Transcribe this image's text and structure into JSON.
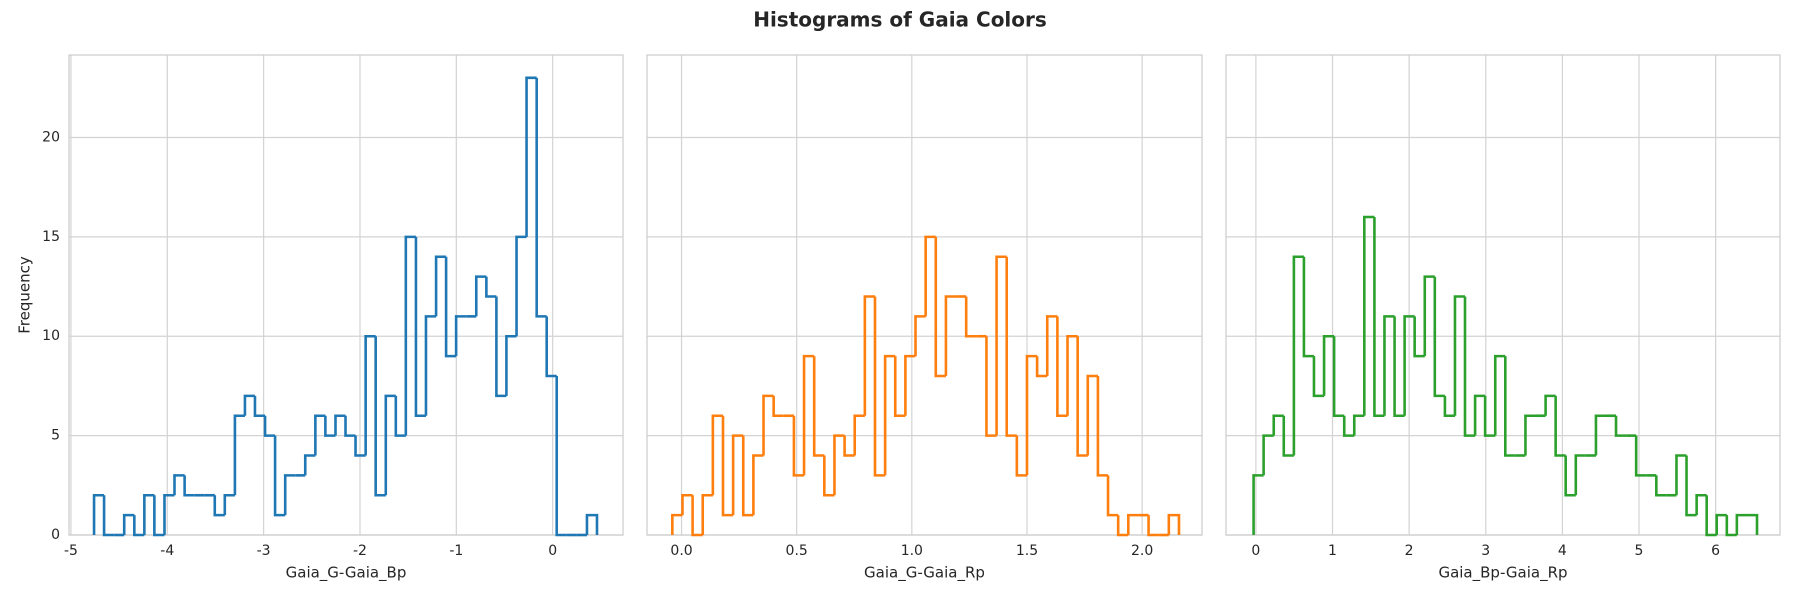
{
  "title": "Histograms of Gaia Colors",
  "chart_data": [
    {
      "type": "histogram",
      "xlabel": "Gaia_G-Gaia_Bp",
      "ylabel": "Frequency",
      "color": "#1f77b4",
      "grid": true,
      "xlim": [
        -5.02,
        0.73
      ],
      "xticks": [
        -5,
        -4,
        -3,
        -2,
        -1,
        0
      ],
      "ylim": [
        0,
        24.15
      ],
      "yticks": [
        0,
        5,
        10,
        15,
        20
      ],
      "bins": [
        -4.76,
        -4.656,
        -4.551,
        -4.447,
        -4.342,
        -4.238,
        -4.134,
        -4.029,
        -3.925,
        -3.82,
        -3.716,
        -3.612,
        -3.507,
        -3.403,
        -3.298,
        -3.194,
        -3.09,
        -2.985,
        -2.881,
        -2.776,
        -2.672,
        -2.568,
        -2.463,
        -2.359,
        -2.254,
        -2.15,
        -2.046,
        -1.941,
        -1.837,
        -1.732,
        -1.628,
        -1.524,
        -1.419,
        -1.315,
        -1.21,
        -1.106,
        -1.002,
        -0.897,
        -0.793,
        -0.688,
        -0.584,
        -0.48,
        -0.375,
        -0.271,
        -0.166,
        -0.062,
        0.042,
        0.147,
        0.251,
        0.356,
        0.46
      ],
      "values": [
        2,
        0,
        0,
        1,
        0,
        2,
        0,
        2,
        3,
        2,
        2,
        2,
        1,
        2,
        6,
        7,
        6,
        5,
        1,
        3,
        3,
        4,
        6,
        5,
        6,
        5,
        4,
        10,
        2,
        7,
        5,
        15,
        6,
        11,
        14,
        9,
        11,
        11,
        13,
        12,
        7,
        10,
        15,
        23,
        11,
        8,
        0,
        0,
        0,
        1
      ]
    },
    {
      "type": "histogram",
      "xlabel": "Gaia_G-Gaia_Rp",
      "color": "#ff7f0e",
      "grid": true,
      "sharey": true,
      "xlim": [
        -0.15,
        2.26
      ],
      "xticks": [
        {
          "value": 0,
          "label": "0.0"
        },
        0.5,
        {
          "value": 1,
          "label": "1.0"
        },
        1.5,
        {
          "value": 2,
          "label": "2.0"
        }
      ],
      "bins": [
        -0.04,
        0.004,
        0.048,
        0.092,
        0.136,
        0.18,
        0.224,
        0.268,
        0.312,
        0.356,
        0.4,
        0.444,
        0.488,
        0.532,
        0.576,
        0.62,
        0.664,
        0.708,
        0.752,
        0.796,
        0.84,
        0.884,
        0.928,
        0.972,
        1.016,
        1.06,
        1.104,
        1.148,
        1.192,
        1.236,
        1.28,
        1.324,
        1.368,
        1.412,
        1.456,
        1.5,
        1.544,
        1.588,
        1.632,
        1.676,
        1.72,
        1.764,
        1.808,
        1.852,
        1.896,
        1.94,
        1.984,
        2.028,
        2.072,
        2.116,
        2.16
      ],
      "values": [
        1,
        2,
        0,
        2,
        6,
        1,
        5,
        1,
        4,
        7,
        6,
        6,
        3,
        9,
        4,
        2,
        5,
        4,
        6,
        12,
        3,
        9,
        6,
        9,
        11,
        15,
        8,
        12,
        12,
        10,
        10,
        5,
        14,
        5,
        3,
        9,
        8,
        11,
        6,
        10,
        4,
        8,
        3,
        1,
        0,
        1,
        1,
        0,
        0,
        1
      ]
    },
    {
      "type": "histogram",
      "xlabel": "Gaia_Bp-Gaia_Rp",
      "color": "#2ca02c",
      "grid": true,
      "sharey": true,
      "xlim": [
        -0.39,
        6.84
      ],
      "xticks": [
        0,
        1,
        2,
        3,
        4,
        5,
        6
      ],
      "bins": [
        -0.03,
        0.101,
        0.233,
        0.364,
        0.496,
        0.627,
        0.758,
        0.89,
        1.021,
        1.153,
        1.284,
        1.415,
        1.547,
        1.678,
        1.81,
        1.941,
        2.072,
        2.204,
        2.335,
        2.467,
        2.598,
        2.729,
        2.861,
        2.992,
        3.124,
        3.255,
        3.386,
        3.518,
        3.649,
        3.781,
        3.912,
        4.043,
        4.175,
        4.306,
        4.438,
        4.569,
        4.7,
        4.832,
        4.963,
        5.095,
        5.226,
        5.357,
        5.489,
        5.62,
        5.752,
        5.883,
        6.014,
        6.146,
        6.277,
        6.409,
        6.54
      ],
      "values": [
        3,
        5,
        6,
        4,
        14,
        9,
        7,
        10,
        6,
        5,
        6,
        16,
        6,
        11,
        6,
        11,
        9,
        13,
        7,
        6,
        12,
        5,
        7,
        5,
        9,
        4,
        4,
        6,
        6,
        7,
        4,
        2,
        4,
        4,
        6,
        6,
        5,
        5,
        3,
        3,
        2,
        2,
        4,
        1,
        2,
        0,
        1,
        0,
        1,
        1
      ]
    }
  ]
}
